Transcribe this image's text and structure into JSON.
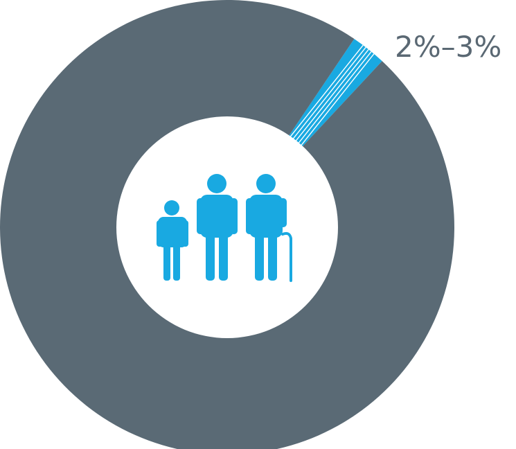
{
  "chart_data": {
    "type": "pie",
    "style": "donut",
    "slices": [
      {
        "label": "2%–3%",
        "value": 2.5,
        "color": "#19a9e1",
        "pattern": "stripes"
      },
      {
        "label": "",
        "value": 97.5,
        "color": "#5a6a75"
      }
    ],
    "annotations": [
      "2%–3%"
    ]
  },
  "center_icon": {
    "name": "family-icon",
    "color": "#19a9e1",
    "figures": [
      "child",
      "adult",
      "elderly-with-cane"
    ]
  }
}
